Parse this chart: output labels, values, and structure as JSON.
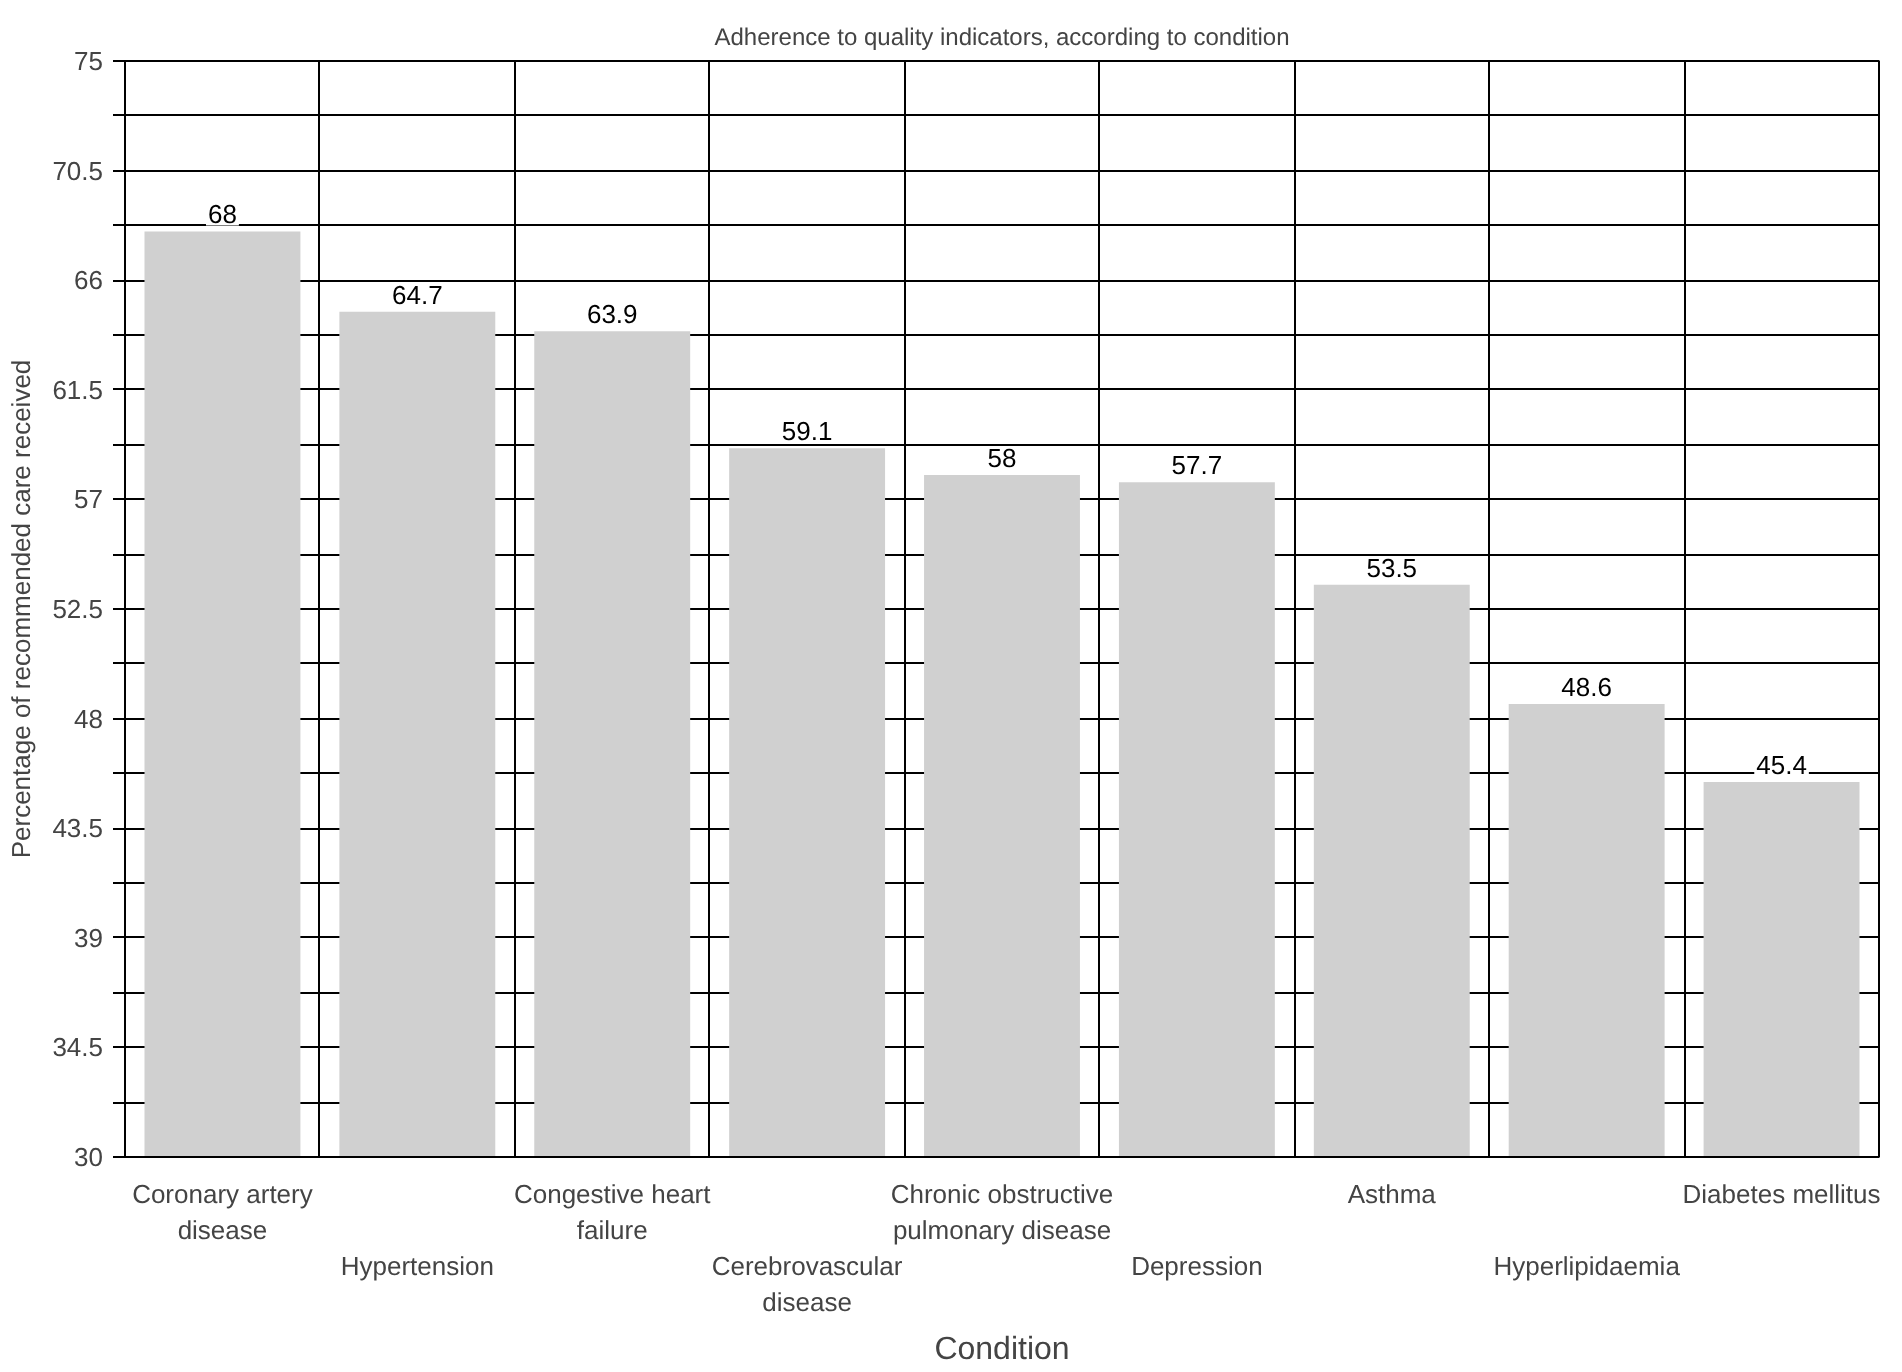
{
  "chart_data": {
    "type": "bar",
    "title": "Adherence to quality indicators, according to condition",
    "xlabel": "Condition",
    "ylabel": "Percentage of recommended care received",
    "categories": [
      "Coronary artery\ndisease",
      "Hypertension",
      "Congestive heart\nfailure",
      "Cerebrovascular\ndisease",
      "Chronic obstructive\npulmonary disease",
      "Depression",
      "Asthma",
      "Hyperlipidaemia",
      "Diabetes mellitus"
    ],
    "values": [
      68,
      64.7,
      63.9,
      59.1,
      58,
      57.7,
      53.5,
      48.6,
      45.4
    ],
    "color": "#d0d0d0",
    "data_labels": true,
    "grid": true,
    "ylim": [
      30,
      75
    ],
    "yticks": [
      30,
      {
        "value": 32.25,
        "label": null
      },
      34.5,
      {
        "value": 36.75,
        "label": null
      },
      39,
      {
        "value": 41.25,
        "label": null
      },
      43.5,
      {
        "value": 45.75,
        "label": null
      },
      48,
      {
        "value": 50.25,
        "label": null
      },
      52.5,
      {
        "value": 54.75,
        "label": null
      },
      57,
      {
        "value": 59.25,
        "label": null
      },
      61.5,
      {
        "value": 63.75,
        "label": null
      },
      66,
      {
        "value": 68.25,
        "label": null
      },
      70.5,
      {
        "value": 72.75,
        "label": null
      },
      75
    ]
  }
}
